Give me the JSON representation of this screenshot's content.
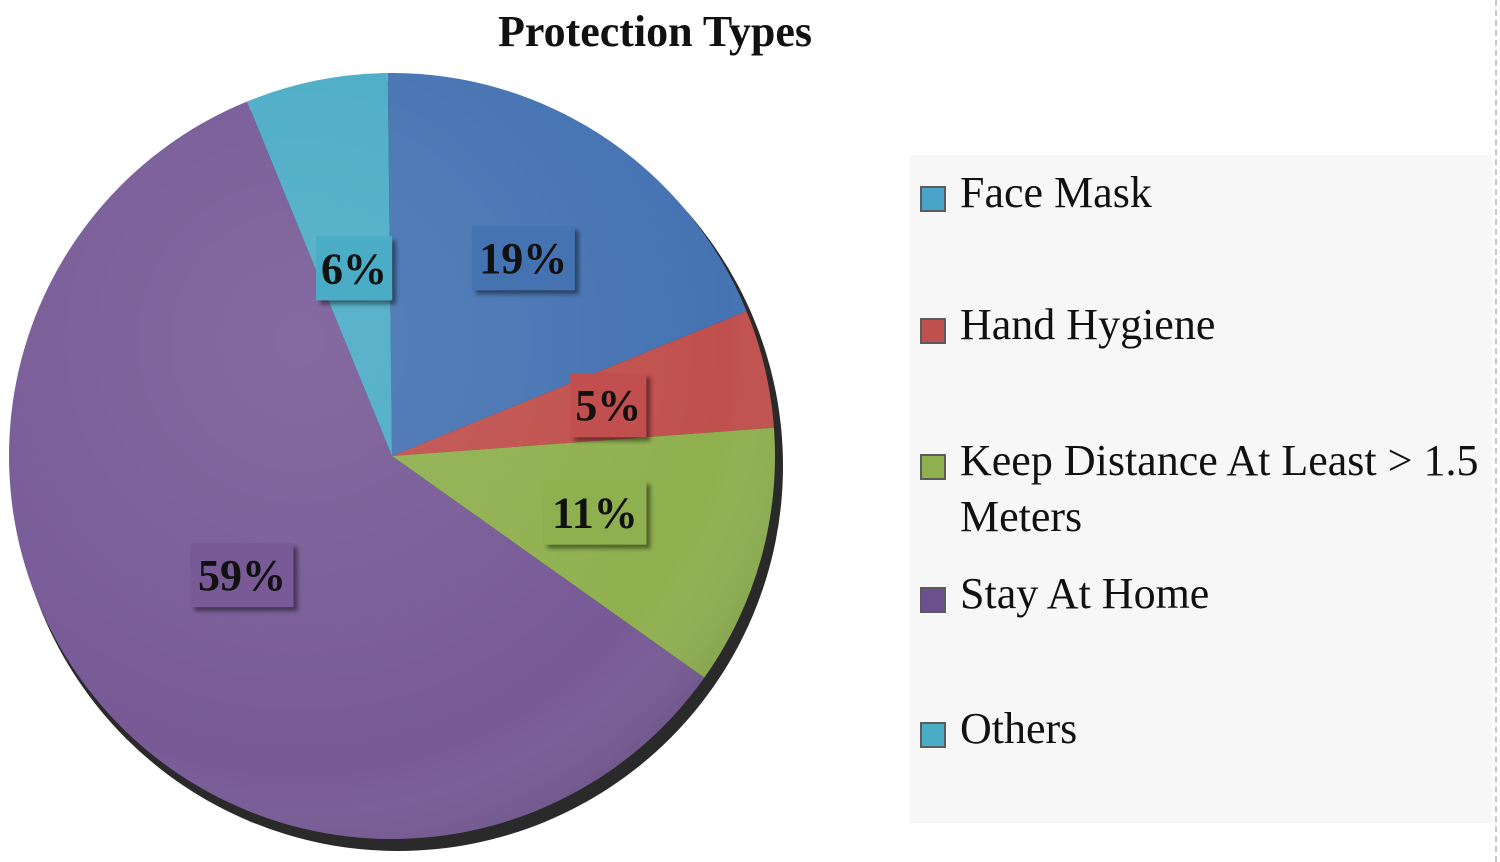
{
  "chart_data": {
    "type": "pie",
    "title": "Protection Types",
    "legend_position": "right",
    "slices": [
      {
        "name": "Face Mask",
        "value": 19,
        "label": "19%",
        "color": "#4573b2",
        "legend_swatch": "#4aa3c9"
      },
      {
        "name": "Hand Hygiene",
        "value": 5,
        "label": "5%",
        "color": "#c0504d",
        "legend_swatch": "#c0504d"
      },
      {
        "name": "Keep Distance At Least > 1.5 Meters",
        "value": 11,
        "label": "11%",
        "color": "#8fb04f",
        "legend_swatch": "#8fb04f"
      },
      {
        "name": "Stay At Home",
        "value": 59,
        "label": "59%",
        "color": "#775a96",
        "legend_swatch": "#6b4f8e"
      },
      {
        "name": "Others",
        "value": 6,
        "label": "6%",
        "color": "#4bacc6",
        "legend_swatch": "#4bacc6"
      }
    ]
  }
}
